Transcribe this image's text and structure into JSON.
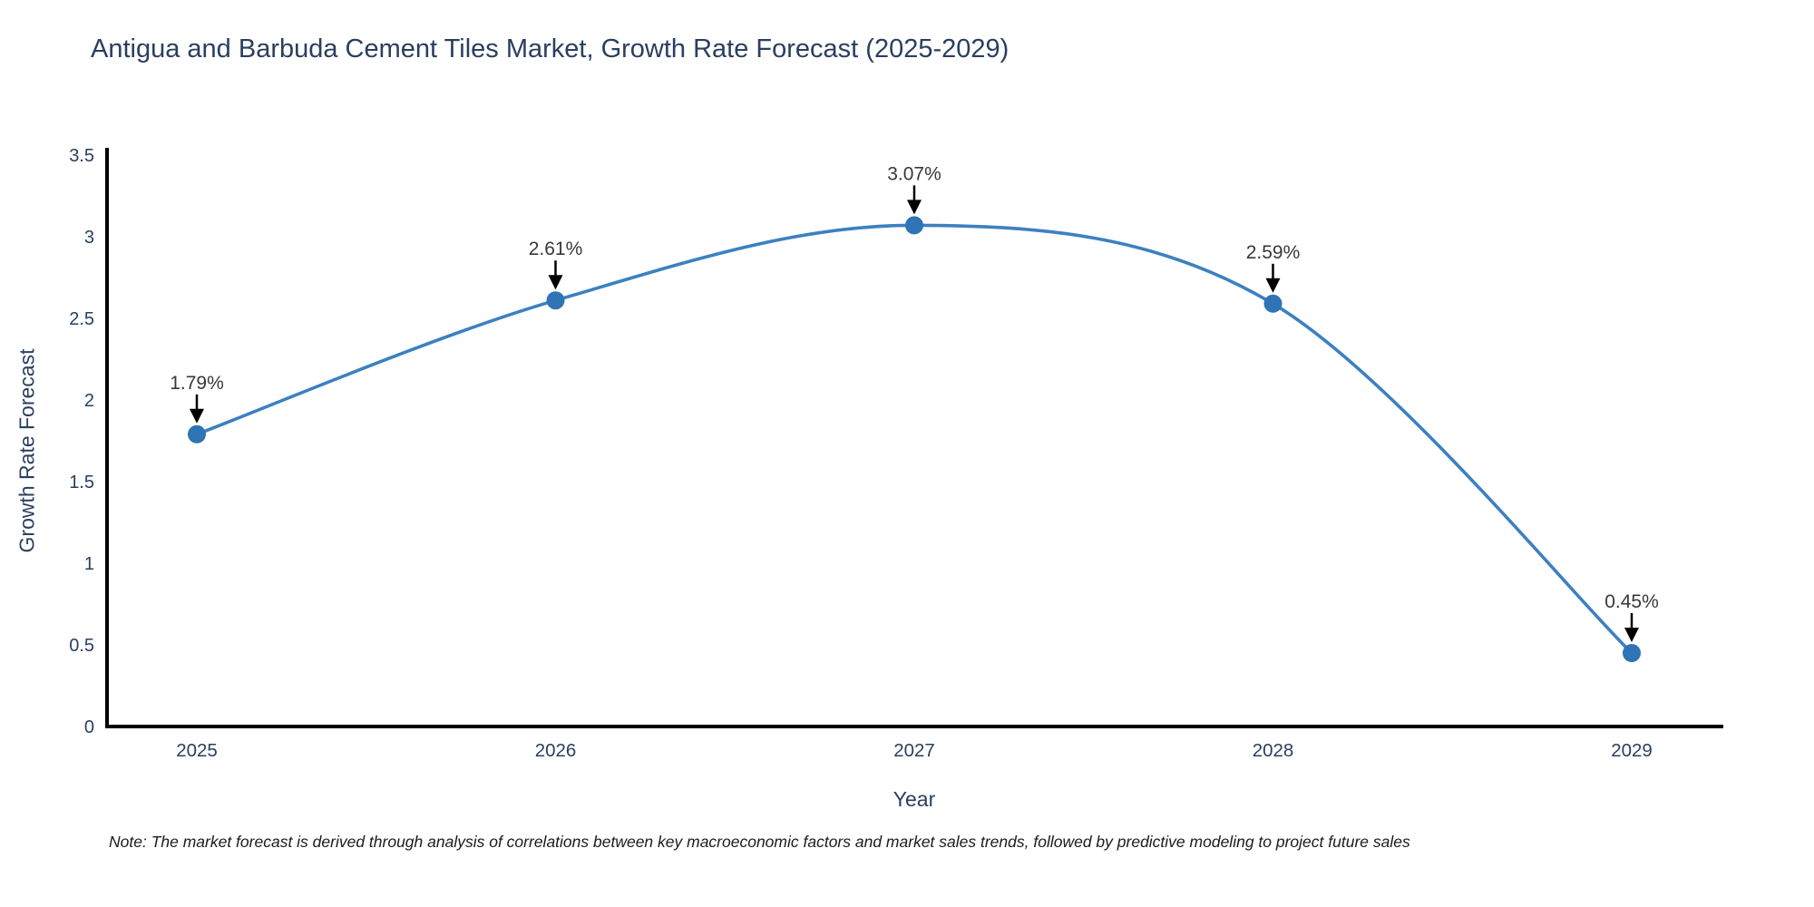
{
  "figure": {
    "note": "Note: The market forecast is derived through analysis of correlations between key macroeconomic factors and market sales trends, followed by predictive modeling to project future sales"
  },
  "chart_data": {
    "type": "line",
    "title": "Antigua and Barbuda Cement Tiles Market, Growth Rate Forecast (2025-2029)",
    "xlabel": "Year",
    "ylabel": "Growth Rate Forecast",
    "x": [
      "2025",
      "2026",
      "2027",
      "2028",
      "2029"
    ],
    "series": [
      {
        "name": "Growth Rate Forecast",
        "values": [
          1.79,
          2.61,
          3.07,
          2.59,
          0.45
        ]
      }
    ],
    "point_labels": [
      "1.79%",
      "2.61%",
      "3.07%",
      "2.59%",
      "0.45%"
    ],
    "ylim": [
      0,
      3.5
    ],
    "yticks": [
      0,
      0.5,
      1,
      1.5,
      2,
      2.5,
      3,
      3.5
    ],
    "ytick_labels": [
      "0",
      "0.5",
      "1",
      "1.5",
      "2",
      "2.5",
      "3",
      "3.5"
    ],
    "line_shape": "spline",
    "grid": false,
    "legend_position": "none",
    "colors": {
      "line": "#3d80c0",
      "marker": "#2f74b4",
      "axis": "#000000",
      "tick_text": "#2a3f5f",
      "annotation_text": "#383838",
      "arrow": "#000000"
    }
  }
}
